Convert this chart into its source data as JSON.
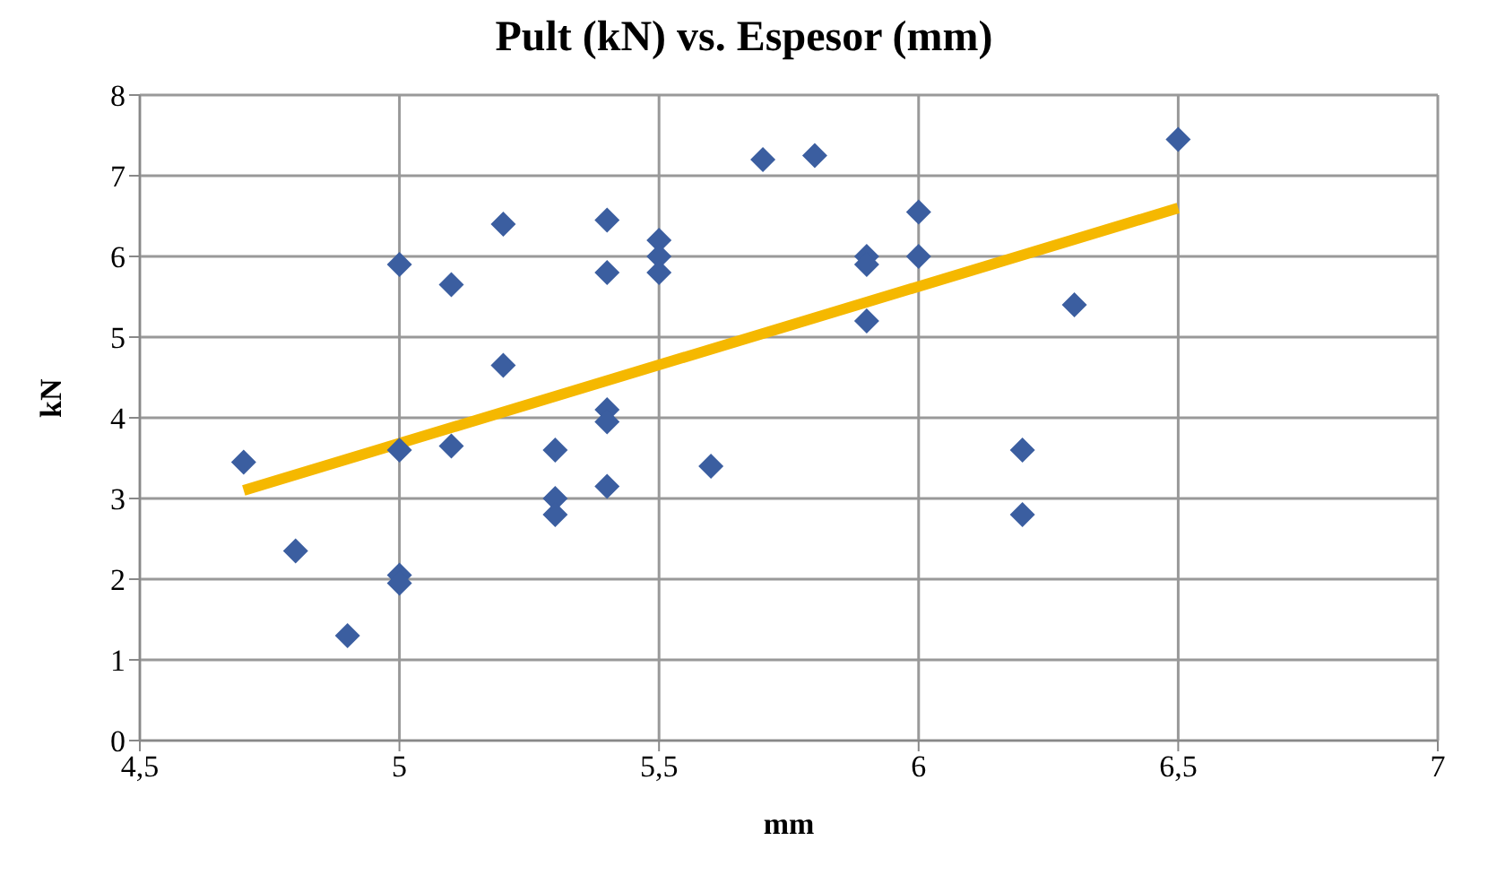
{
  "chart_data": {
    "type": "scatter",
    "title": "Pult (kN) vs. Espesor (mm)",
    "xlabel": "mm",
    "ylabel": "kN",
    "xlim": [
      4.5,
      7
    ],
    "xticks": [
      {
        "value": 4.5,
        "label": "4,5"
      },
      5,
      {
        "value": 5.5,
        "label": "5,5"
      },
      6,
      {
        "value": 6.5,
        "label": "6,5"
      },
      7
    ],
    "ylim": [
      0,
      8
    ],
    "yticks": [
      0,
      1,
      2,
      3,
      4,
      5,
      6,
      7,
      8
    ],
    "grid": true,
    "marker": "diamond",
    "series": [
      {
        "color": "#3b5ea0",
        "x": [
          4.7,
          4.8,
          4.9,
          5.0,
          5.0,
          5.0,
          5.0,
          5.1,
          5.1,
          5.2,
          5.2,
          5.3,
          5.3,
          5.3,
          5.4,
          5.4,
          5.4,
          5.4,
          5.4,
          5.5,
          5.5,
          5.5,
          5.6,
          5.7,
          5.8,
          5.9,
          5.9,
          5.9,
          6.0,
          6.0,
          6.2,
          6.2,
          6.3,
          6.5
        ],
        "values": [
          3.45,
          2.35,
          1.3,
          5.9,
          3.6,
          2.05,
          1.95,
          5.65,
          3.65,
          6.4,
          4.65,
          3.6,
          3.0,
          2.8,
          6.45,
          5.8,
          4.1,
          3.95,
          3.15,
          6.2,
          6.0,
          5.8,
          3.4,
          7.2,
          7.25,
          6.0,
          5.9,
          5.2,
          6.55,
          6.0,
          3.6,
          2.8,
          5.4,
          7.45
        ]
      },
      {
        "type": "line",
        "color": "#f5b800",
        "x": [
          4.7,
          6.5
        ],
        "values": [
          3.1,
          6.6
        ],
        "marker": "none"
      }
    ]
  }
}
